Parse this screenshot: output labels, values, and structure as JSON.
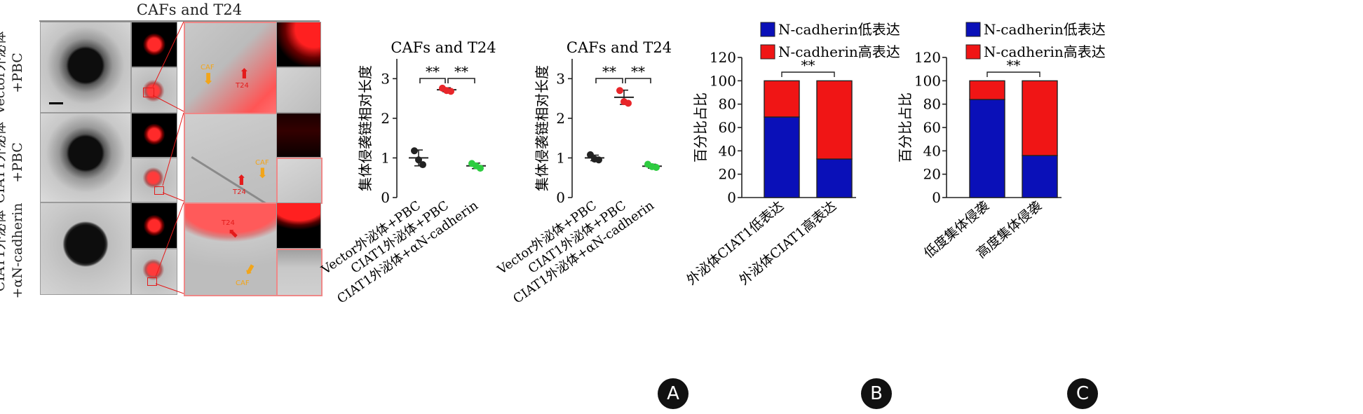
{
  "figure": {
    "micro_title": "CAFs and T24",
    "row_labels": [
      [
        "Vector外泌体",
        "+PBC"
      ],
      [
        "CIAT1外泌体",
        "+PBC"
      ],
      [
        "CIAT1外泌体",
        "+αN-cadherin"
      ]
    ],
    "arrow_labels": {
      "caf": "CAF",
      "t24": "T24"
    },
    "panel_letters": [
      "A",
      "B",
      "C"
    ],
    "colors": {
      "low_blue": "#0a10b8",
      "high_red": "#f01515",
      "vector_black": "#222222",
      "ciat1_red": "#e8262a",
      "antibody_green": "#2ecc40",
      "arrow_red": "#e41b1b",
      "arrow_orange": "#f2a51a"
    }
  },
  "chart_data": [
    {
      "type": "scatter",
      "title": "CAFs and T24",
      "ylabel": "集体侵袭链相对长度",
      "ylim": [
        0,
        3.5
      ],
      "yticks": [
        0,
        1,
        2,
        3
      ],
      "categories": [
        "Vector外泌体+PBC",
        "CIAT1外泌体+PBC",
        "CIAT1外泌体+αN-cadherin"
      ],
      "series": [
        {
          "name": "Vector外泌体+PBC",
          "mean": 1.0,
          "sd": 0.2,
          "points": [
            1.18,
            0.95,
            0.83
          ]
        },
        {
          "name": "CIAT1外泌体+PBC",
          "mean": 2.72,
          "sd": 0.05,
          "points": [
            2.76,
            2.7,
            2.68
          ]
        },
        {
          "name": "CIAT1外泌体+αN-cadherin",
          "mean": 0.8,
          "sd": 0.07,
          "points": [
            0.86,
            0.8,
            0.74
          ]
        }
      ],
      "significance": [
        {
          "from": 0,
          "to": 1,
          "label": "**"
        },
        {
          "from": 1,
          "to": 2,
          "label": "**"
        }
      ]
    },
    {
      "type": "scatter",
      "title": "CAFs and T24",
      "ylabel": "集体侵袭链相对长度",
      "ylim": [
        0,
        3.5
      ],
      "yticks": [
        0,
        1,
        2,
        3
      ],
      "categories": [
        "Vector外泌体+PBC",
        "CIAT1外泌体+PBC",
        "CIAT1外泌体+αN-cadherin"
      ],
      "series": [
        {
          "name": "Vector外泌体+PBC",
          "mean": 1.0,
          "sd": 0.07,
          "points": [
            1.08,
            0.97,
            0.95
          ]
        },
        {
          "name": "CIAT1外泌体+PBC",
          "mean": 2.53,
          "sd": 0.18,
          "points": [
            2.7,
            2.42,
            2.38
          ]
        },
        {
          "name": "CIAT1外泌体+αN-cadherin",
          "mean": 0.79,
          "sd": 0.05,
          "points": [
            0.84,
            0.78,
            0.76
          ]
        }
      ],
      "significance": [
        {
          "from": 0,
          "to": 1,
          "label": "**"
        },
        {
          "from": 1,
          "to": 2,
          "label": "**"
        }
      ]
    },
    {
      "type": "bar",
      "stacked": true,
      "ylabel": "百分比占比",
      "ylim": [
        0,
        120
      ],
      "yticks": [
        0,
        20,
        40,
        60,
        80,
        100,
        120
      ],
      "categories": [
        "外泌体CIAT1低表达",
        "外泌体CIAT1高表达"
      ],
      "series": [
        {
          "name": "N-cadherin低表达",
          "values": [
            69,
            33
          ]
        },
        {
          "name": "N-cadherin高表达",
          "values": [
            31,
            67
          ]
        }
      ],
      "significance": [
        {
          "from": 0,
          "to": 1,
          "label": "**"
        }
      ]
    },
    {
      "type": "bar",
      "stacked": true,
      "ylabel": "百分比占比",
      "ylim": [
        0,
        120
      ],
      "yticks": [
        0,
        20,
        40,
        60,
        80,
        100,
        120
      ],
      "categories": [
        "低度集体侵袭",
        "高度集体侵袭"
      ],
      "series": [
        {
          "name": "N-cadherin低表达",
          "values": [
            84,
            36
          ]
        },
        {
          "name": "N-cadherin高表达",
          "values": [
            16,
            64
          ]
        }
      ],
      "significance": [
        {
          "from": 0,
          "to": 1,
          "label": "**"
        }
      ]
    }
  ]
}
